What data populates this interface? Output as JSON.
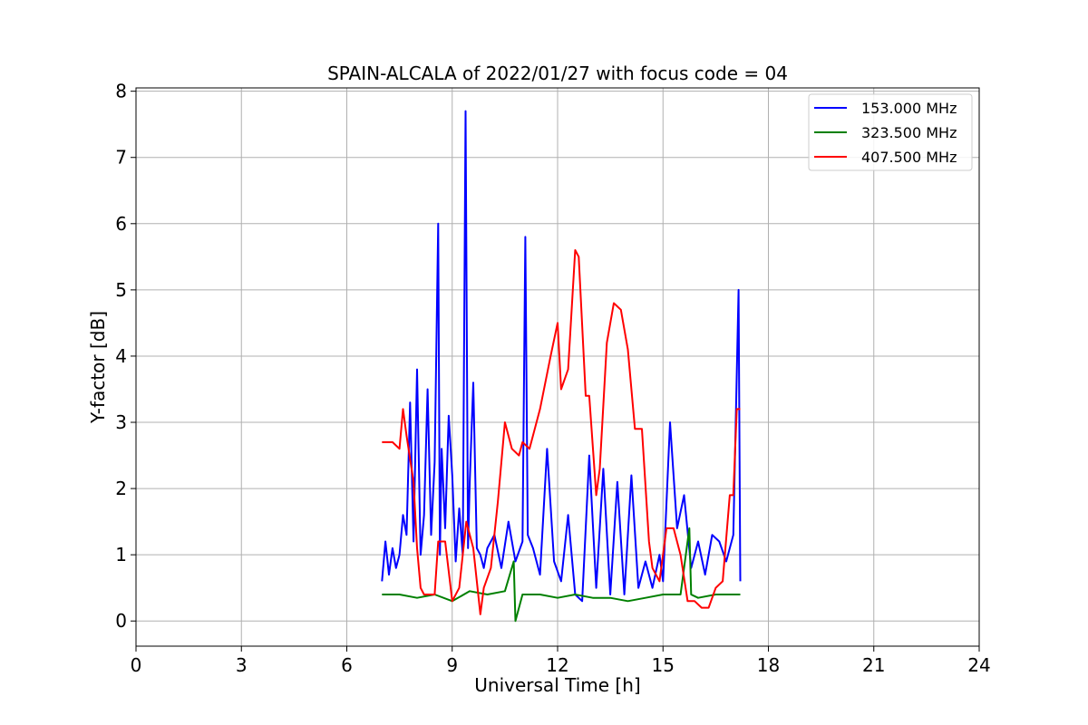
{
  "chart_data": {
    "type": "line",
    "title": "SPAIN-ALCALA of 2022/01/27 with focus code = 04",
    "xlabel": "Universal Time [h]",
    "ylabel": "Y-factor [dB]",
    "xlim": [
      0,
      24
    ],
    "ylim": [
      -0.38,
      8.05
    ],
    "xticks": [
      0,
      3,
      6,
      9,
      12,
      15,
      18,
      21,
      24
    ],
    "yticks": [
      0,
      1,
      2,
      3,
      4,
      5,
      6,
      7,
      8
    ],
    "grid": true,
    "legend_position": "top-right",
    "series": [
      {
        "name": "153.000 MHz",
        "color": "#0000ff",
        "x": [
          7.0,
          7.1,
          7.2,
          7.3,
          7.4,
          7.5,
          7.6,
          7.7,
          7.8,
          7.9,
          8.0,
          8.1,
          8.2,
          8.3,
          8.4,
          8.5,
          8.6,
          8.65,
          8.7,
          8.8,
          8.9,
          9.0,
          9.1,
          9.2,
          9.3,
          9.38,
          9.45,
          9.5,
          9.6,
          9.7,
          9.8,
          9.9,
          10.0,
          10.2,
          10.4,
          10.6,
          10.8,
          11.0,
          11.08,
          11.15,
          11.3,
          11.5,
          11.7,
          11.9,
          12.1,
          12.3,
          12.5,
          12.7,
          12.9,
          13.1,
          13.3,
          13.5,
          13.7,
          13.9,
          14.1,
          14.3,
          14.5,
          14.7,
          14.9,
          15.0,
          15.2,
          15.4,
          15.6,
          15.8,
          16.0,
          16.2,
          16.4,
          16.6,
          16.8,
          17.0,
          17.15,
          17.2
        ],
        "values": [
          0.6,
          1.2,
          0.7,
          1.1,
          0.8,
          1.0,
          1.6,
          1.3,
          3.3,
          1.2,
          3.8,
          1.0,
          1.6,
          3.5,
          1.3,
          2.4,
          6.0,
          1.0,
          2.6,
          1.4,
          3.1,
          2.2,
          0.9,
          1.7,
          1.0,
          7.7,
          1.1,
          2.1,
          3.6,
          1.1,
          1.0,
          0.8,
          1.1,
          1.3,
          0.8,
          1.5,
          0.9,
          1.2,
          5.8,
          1.3,
          1.1,
          0.7,
          2.6,
          0.9,
          0.6,
          1.6,
          0.4,
          0.3,
          2.5,
          0.5,
          2.3,
          0.4,
          2.1,
          0.4,
          2.2,
          0.5,
          0.9,
          0.5,
          1.0,
          0.6,
          3.0,
          1.4,
          1.9,
          0.8,
          1.2,
          0.7,
          1.3,
          1.2,
          0.9,
          1.3,
          5.0,
          0.6
        ]
      },
      {
        "name": "323.500 MHz",
        "color": "#008000",
        "x": [
          7.0,
          7.5,
          8.0,
          8.5,
          9.0,
          9.5,
          10.0,
          10.5,
          10.75,
          10.8,
          11.0,
          11.5,
          12.0,
          12.5,
          13.0,
          13.5,
          14.0,
          14.5,
          15.0,
          15.5,
          15.75,
          15.8,
          16.0,
          16.5,
          17.0,
          17.2
        ],
        "values": [
          0.4,
          0.4,
          0.35,
          0.4,
          0.3,
          0.45,
          0.4,
          0.45,
          0.9,
          0.0,
          0.4,
          0.4,
          0.35,
          0.4,
          0.35,
          0.35,
          0.3,
          0.35,
          0.4,
          0.4,
          1.4,
          0.4,
          0.35,
          0.4,
          0.4,
          0.4
        ]
      },
      {
        "name": "407.500 MHz",
        "color": "#ff0000",
        "x": [
          7.0,
          7.3,
          7.5,
          7.6,
          7.7,
          7.9,
          8.0,
          8.1,
          8.2,
          8.5,
          8.6,
          8.8,
          9.0,
          9.2,
          9.4,
          9.6,
          9.8,
          9.9,
          10.1,
          10.3,
          10.5,
          10.7,
          10.9,
          11.0,
          11.2,
          11.5,
          11.8,
          12.0,
          12.1,
          12.3,
          12.5,
          12.6,
          12.8,
          12.9,
          13.1,
          13.2,
          13.4,
          13.6,
          13.8,
          14.0,
          14.2,
          14.4,
          14.6,
          14.7,
          14.9,
          15.1,
          15.3,
          15.5,
          15.7,
          15.9,
          16.1,
          16.3,
          16.5,
          16.7,
          16.9,
          17.0,
          17.1,
          17.2
        ],
        "values": [
          2.7,
          2.7,
          2.6,
          3.2,
          2.8,
          2.1,
          1.1,
          0.5,
          0.4,
          0.4,
          1.2,
          1.2,
          0.3,
          0.5,
          1.5,
          1.1,
          0.1,
          0.5,
          0.8,
          1.8,
          3.0,
          2.6,
          2.5,
          2.7,
          2.6,
          3.2,
          4.0,
          4.5,
          3.5,
          3.8,
          5.6,
          5.5,
          3.4,
          3.4,
          1.9,
          2.3,
          4.2,
          4.8,
          4.7,
          4.1,
          2.9,
          2.9,
          1.2,
          0.8,
          0.6,
          1.4,
          1.4,
          1.0,
          0.3,
          0.3,
          0.2,
          0.2,
          0.5,
          0.6,
          1.9,
          1.9,
          3.2,
          3.2
        ]
      }
    ]
  }
}
